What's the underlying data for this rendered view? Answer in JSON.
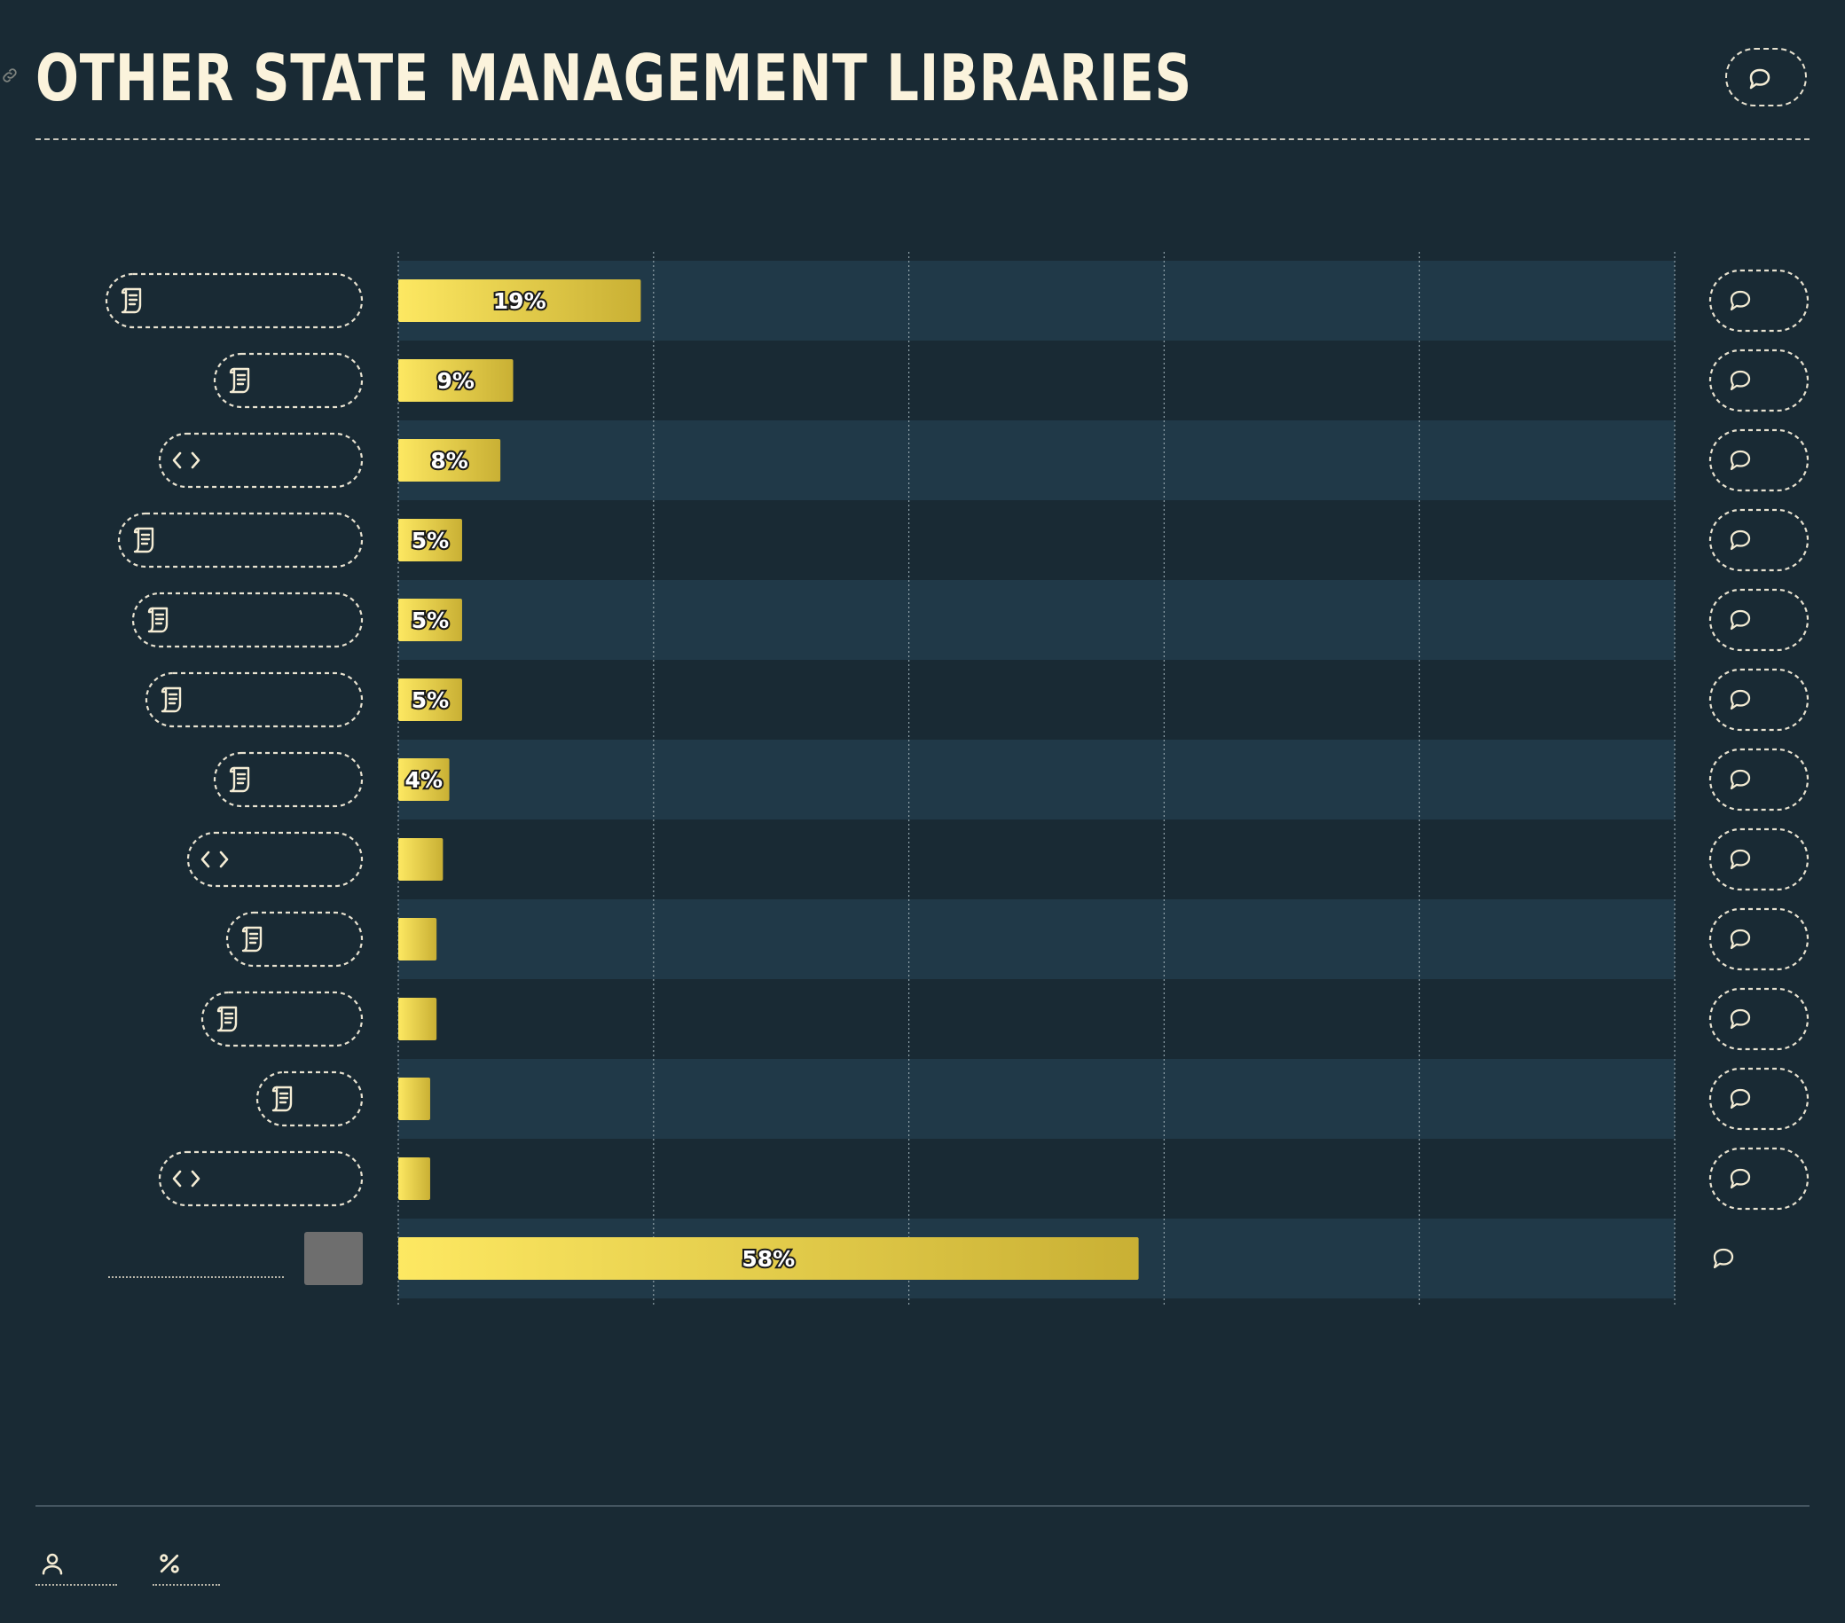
{
  "page": {
    "title": "OTHER STATE MANAGEMENT LIBRARIES",
    "title_color": "#fbf3dc",
    "background": "#192a34",
    "icons": {
      "header_link": "link-icon",
      "header_comment": "comment-icon",
      "footer_respondents": "user-icon",
      "footer_percentage": "percent-icon"
    }
  },
  "chart_data": {
    "type": "bar",
    "orientation": "horizontal",
    "title": "OTHER STATE MANAGEMENT LIBRARIES",
    "xlim": [
      0,
      100
    ],
    "grid": true,
    "bar_gradient": [
      "#fde862",
      "#c9b034"
    ],
    "band_color": "#203948",
    "rows": [
      {
        "value": 19,
        "label": "19%",
        "icon": "scroll-icon"
      },
      {
        "value": 9,
        "label": "9%",
        "icon": "scroll-icon"
      },
      {
        "value": 8,
        "label": "8%",
        "icon": "code-icon"
      },
      {
        "value": 5,
        "label": "5%",
        "icon": "scroll-icon"
      },
      {
        "value": 5,
        "label": "5%",
        "icon": "scroll-icon"
      },
      {
        "value": 5,
        "label": "5%",
        "icon": "scroll-icon"
      },
      {
        "value": 4,
        "label": "4%",
        "icon": "scroll-icon"
      },
      {
        "value": 3.5,
        "label": "",
        "icon": "code-icon"
      },
      {
        "value": 3,
        "label": "",
        "icon": "scroll-icon"
      },
      {
        "value": 3,
        "label": "",
        "icon": "scroll-icon"
      },
      {
        "value": 2.5,
        "label": "",
        "icon": "scroll-icon"
      },
      {
        "value": 2.5,
        "label": "",
        "icon": "code-icon"
      },
      {
        "value": 58,
        "label": "58%",
        "icon": "swatch"
      }
    ]
  }
}
